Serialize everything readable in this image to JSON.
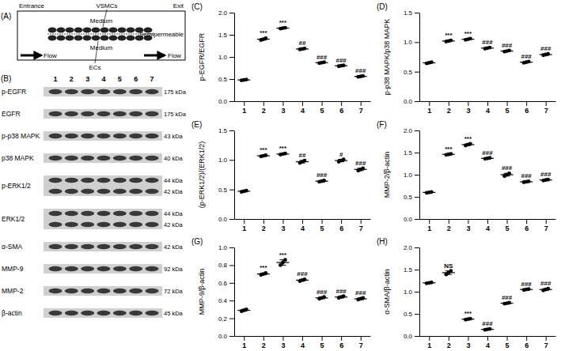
{
  "diagram": {
    "label": "(A)",
    "texts": {
      "entrance": "Entrance",
      "exit": "Exit",
      "vsmcs": "VSMCs",
      "medium_top": "Medium",
      "semipermeable": "Semipermeable",
      "medium_bottom": "Medium",
      "ecs": "ECs",
      "flow_left": "Flow",
      "flow_right": "Flow"
    }
  },
  "blot": {
    "label": "(B)",
    "lanes": [
      "1",
      "2",
      "3",
      "4",
      "5",
      "6",
      "7"
    ],
    "rows": [
      {
        "name": "p-EGFR",
        "sizes": [
          "175 kDa"
        ]
      },
      {
        "name": "EGFR",
        "sizes": [
          "175 kDa"
        ]
      },
      {
        "name": "p-p38 MAPK",
        "sizes": [
          "43 kDa"
        ]
      },
      {
        "name": "p38 MAPK",
        "sizes": [
          "40 kDa"
        ]
      },
      {
        "name": "p-ERK1/2",
        "sizes": [
          "44 kDa",
          "42 kDa"
        ]
      },
      {
        "name": "ERK1/2",
        "sizes": [
          "44 kDa",
          "42 kDa"
        ]
      },
      {
        "name": "α-SMA",
        "sizes": [
          "42 kDa"
        ]
      },
      {
        "name": "MMP-9",
        "sizes": [
          "92 kDa"
        ]
      },
      {
        "name": "MMP-2",
        "sizes": [
          "72 kDa"
        ]
      },
      {
        "name": "β-actin",
        "sizes": [
          "45 kDa"
        ]
      }
    ]
  },
  "chart_data": [
    {
      "type": "dot",
      "panel": "(C)",
      "y_label": "p-EGFR/EGFR",
      "color": "#000000",
      "categories": [
        "1",
        "2",
        "3",
        "4",
        "5",
        "6",
        "7"
      ],
      "values": [
        0.48,
        1.4,
        1.65,
        1.18,
        0.87,
        0.8,
        0.56
      ],
      "errors": [
        0.01,
        0.02,
        0.01,
        0.01,
        0.01,
        0.01,
        0.01
      ],
      "points": [
        [
          0.47,
          0.48,
          0.49
        ],
        [
          1.38,
          1.4,
          1.42
        ],
        [
          1.64,
          1.65,
          1.66
        ],
        [
          1.17,
          1.18,
          1.19
        ],
        [
          0.86,
          0.87,
          0.88
        ],
        [
          0.79,
          0.8,
          0.81
        ],
        [
          0.55,
          0.56,
          0.57
        ]
      ],
      "annotations": [
        null,
        "***",
        "***",
        "##",
        "###",
        "###",
        "###"
      ],
      "ylim": [
        0,
        2
      ],
      "yticks": [
        {
          "value": 0,
          "label": "0.0"
        },
        0.5,
        {
          "value": 1,
          "label": "1.0"
        },
        1.5,
        {
          "value": 2,
          "label": "2.0"
        }
      ]
    },
    {
      "type": "dot",
      "panel": "(D)",
      "y_label": "p-p38 MAPK/p38 MAPK",
      "color": "#000000",
      "categories": [
        "1",
        "2",
        "3",
        "4",
        "5",
        "6",
        "7"
      ],
      "values": [
        0.65,
        1.02,
        1.05,
        0.9,
        0.85,
        0.66,
        0.79
      ],
      "errors": [
        0.01,
        0.01,
        0.01,
        0.01,
        0.01,
        0.01,
        0.01
      ],
      "points": [
        [
          0.64,
          0.65,
          0.66
        ],
        [
          1.01,
          1.02,
          1.03
        ],
        [
          1.04,
          1.05,
          1.06
        ],
        [
          0.89,
          0.9,
          0.91
        ],
        [
          0.84,
          0.85,
          0.86
        ],
        [
          0.65,
          0.66,
          0.67
        ],
        [
          0.78,
          0.79,
          0.8
        ]
      ],
      "annotations": [
        null,
        "***",
        "***",
        "###",
        "###",
        "###",
        "###"
      ],
      "ylim": [
        0,
        1.5
      ],
      "yticks": [
        {
          "value": 0,
          "label": "0.0"
        },
        0.5,
        {
          "value": 1,
          "label": "1.0"
        },
        1.5
      ]
    },
    {
      "type": "dot",
      "panel": "(E)",
      "y_label": "(p-ERK1/2)/(ERK1/2)",
      "color": "#000000",
      "categories": [
        "1",
        "2",
        "3",
        "4",
        "5",
        "6",
        "7"
      ],
      "values": [
        0.47,
        1.07,
        1.1,
        0.97,
        0.64,
        0.99,
        0.84
      ],
      "errors": [
        0.01,
        0.01,
        0.01,
        0.02,
        0.01,
        0.02,
        0.02
      ],
      "points": [
        [
          0.46,
          0.47,
          0.48
        ],
        [
          1.06,
          1.07,
          1.08
        ],
        [
          1.09,
          1.1,
          1.11
        ],
        [
          0.95,
          0.97,
          0.99
        ],
        [
          0.63,
          0.64,
          0.65
        ],
        [
          0.97,
          0.99,
          1.01
        ],
        [
          0.82,
          0.84,
          0.86
        ]
      ],
      "annotations": [
        null,
        "***",
        "***",
        "##",
        "###",
        "#",
        "###"
      ],
      "ylim": [
        0,
        1.5
      ],
      "yticks": [
        {
          "value": 0,
          "label": "0.0"
        },
        0.5,
        {
          "value": 1,
          "label": "1.0"
        },
        1.5
      ]
    },
    {
      "type": "dot",
      "panel": "(F)",
      "y_label": "MMP-2/β-actin",
      "color": "#000000",
      "categories": [
        "1",
        "2",
        "3",
        "4",
        "5",
        "6",
        "7"
      ],
      "values": [
        0.6,
        1.46,
        1.68,
        1.37,
        1.0,
        0.84,
        0.88
      ],
      "errors": [
        0.01,
        0.01,
        0.02,
        0.01,
        0.03,
        0.01,
        0.01
      ],
      "points": [
        [
          0.59,
          0.6,
          0.61
        ],
        [
          1.45,
          1.46,
          1.47
        ],
        [
          1.66,
          1.68,
          1.7
        ],
        [
          1.36,
          1.37,
          1.38
        ],
        [
          0.97,
          1.0,
          1.03
        ],
        [
          0.83,
          0.84,
          0.85
        ],
        [
          0.87,
          0.88,
          0.89
        ]
      ],
      "annotations": [
        null,
        "***",
        "***",
        "###",
        "###",
        "###",
        "###"
      ],
      "ylim": [
        0,
        2
      ],
      "yticks": [
        {
          "value": 0,
          "label": "0.0"
        },
        0.5,
        {
          "value": 1,
          "label": "1.0"
        },
        1.5,
        {
          "value": 2,
          "label": "2.0"
        }
      ]
    },
    {
      "type": "dot",
      "panel": "(G)",
      "y_label": "MMP-9/β-actin",
      "color": "#000000",
      "categories": [
        "1",
        "2",
        "3",
        "4",
        "5",
        "6",
        "7"
      ],
      "values": [
        0.29,
        0.7,
        0.83,
        0.63,
        0.43,
        0.44,
        0.42
      ],
      "errors": [
        0.01,
        0.01,
        0.03,
        0.01,
        0.01,
        0.01,
        0.01
      ],
      "points": [
        [
          0.28,
          0.29,
          0.3
        ],
        [
          0.69,
          0.7,
          0.71
        ],
        [
          0.8,
          0.83,
          0.86
        ],
        [
          0.62,
          0.63,
          0.64
        ],
        [
          0.42,
          0.43,
          0.44
        ],
        [
          0.43,
          0.44,
          0.45
        ],
        [
          0.41,
          0.42,
          0.43
        ]
      ],
      "annotations": [
        null,
        "***",
        "***",
        "###",
        "###",
        "###",
        "###"
      ],
      "ylim": [
        0,
        1
      ],
      "yticks": [
        {
          "value": 0,
          "label": "0.0"
        },
        0.2,
        0.4,
        0.6,
        0.8,
        {
          "value": 1,
          "label": "1.0"
        }
      ]
    },
    {
      "type": "dot",
      "panel": "(H)",
      "y_label": "α-SMA/β-actin",
      "color": "#000000",
      "categories": [
        "1",
        "2",
        "3",
        "4",
        "5",
        "6",
        "7"
      ],
      "values": [
        1.2,
        1.43,
        0.38,
        0.15,
        0.74,
        1.05,
        1.05
      ],
      "errors": [
        0.01,
        0.04,
        0.01,
        0.01,
        0.01,
        0.01,
        0.02
      ],
      "points": [
        [
          1.19,
          1.2,
          1.21
        ],
        [
          1.39,
          1.43,
          1.47
        ],
        [
          0.37,
          0.38,
          0.39
        ],
        [
          0.14,
          0.15,
          0.16
        ],
        [
          0.73,
          0.74,
          0.75
        ],
        [
          1.04,
          1.05,
          1.06
        ],
        [
          1.03,
          1.05,
          1.07
        ]
      ],
      "annotations": [
        null,
        "NS",
        "***",
        "###",
        "###",
        "###",
        "###"
      ],
      "ylim": [
        0,
        2
      ],
      "yticks": [
        {
          "value": 0,
          "label": "0.0"
        },
        0.5,
        {
          "value": 1,
          "label": "1.0"
        },
        1.5,
        {
          "value": 2,
          "label": "2.0"
        }
      ]
    }
  ]
}
